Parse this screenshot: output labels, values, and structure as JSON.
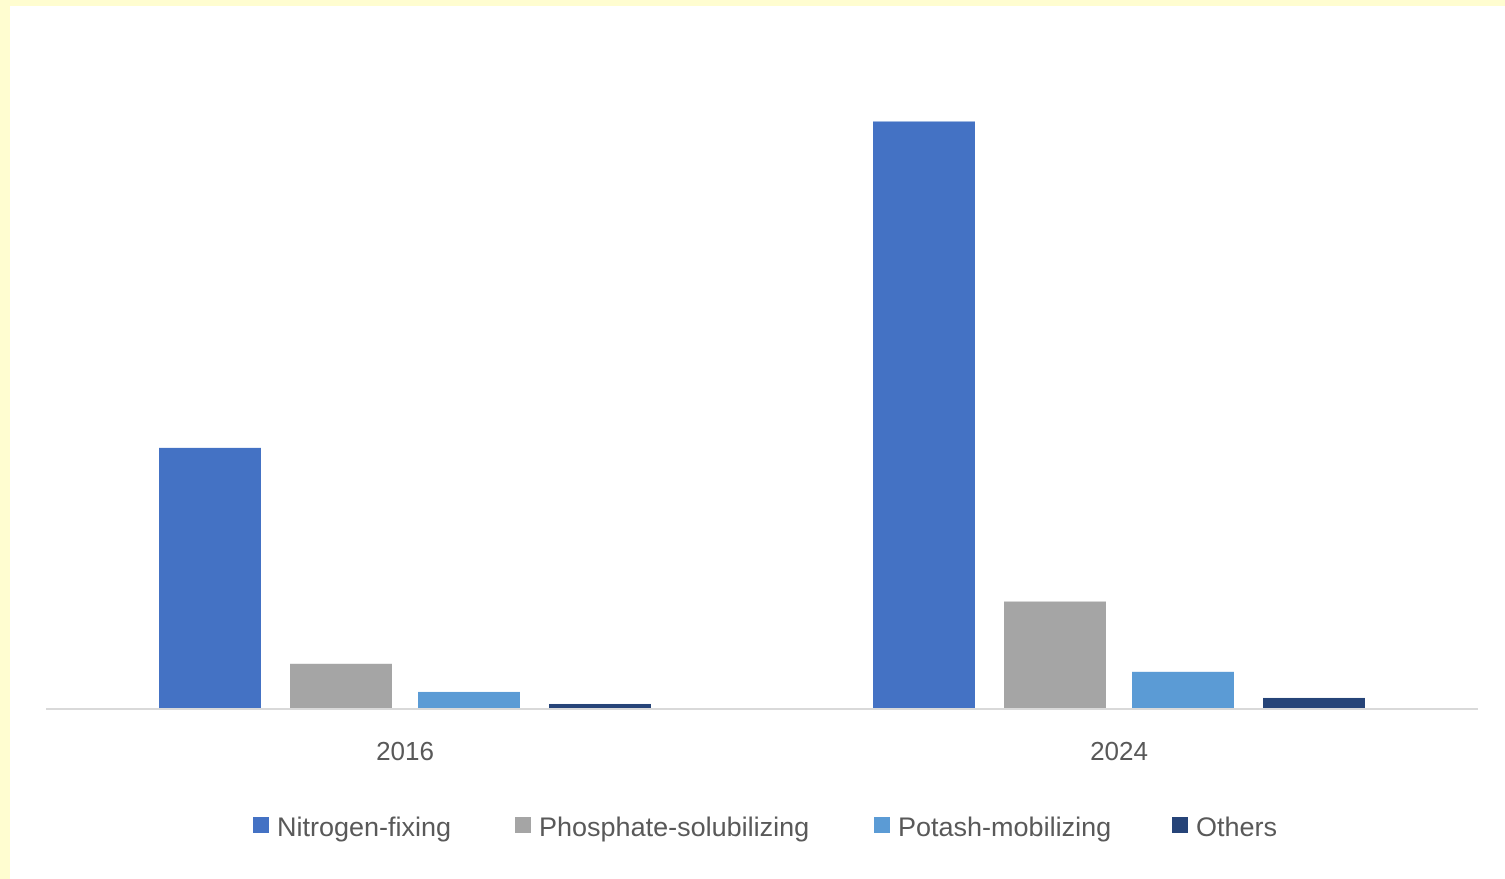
{
  "chart_data": {
    "type": "bar",
    "categories": [
      "2016",
      "2024"
    ],
    "series": [
      {
        "name": "Nitrogen-fixing",
        "color": "#4472c4",
        "values": [
          2.6,
          5.85
        ]
      },
      {
        "name": "Phosphate-solubilizing",
        "color": "#a5a5a5",
        "values": [
          0.45,
          1.07
        ]
      },
      {
        "name": "Potash-mobilizing",
        "color": "#5b9bd5",
        "values": [
          0.17,
          0.37
        ]
      },
      {
        "name": "Others",
        "color": "#264478",
        "values": [
          0.05,
          0.11
        ]
      }
    ],
    "ylim": [
      0,
      7
    ],
    "grid": false,
    "legend_position": "bottom",
    "title": "",
    "xlabel": "",
    "ylabel": ""
  }
}
